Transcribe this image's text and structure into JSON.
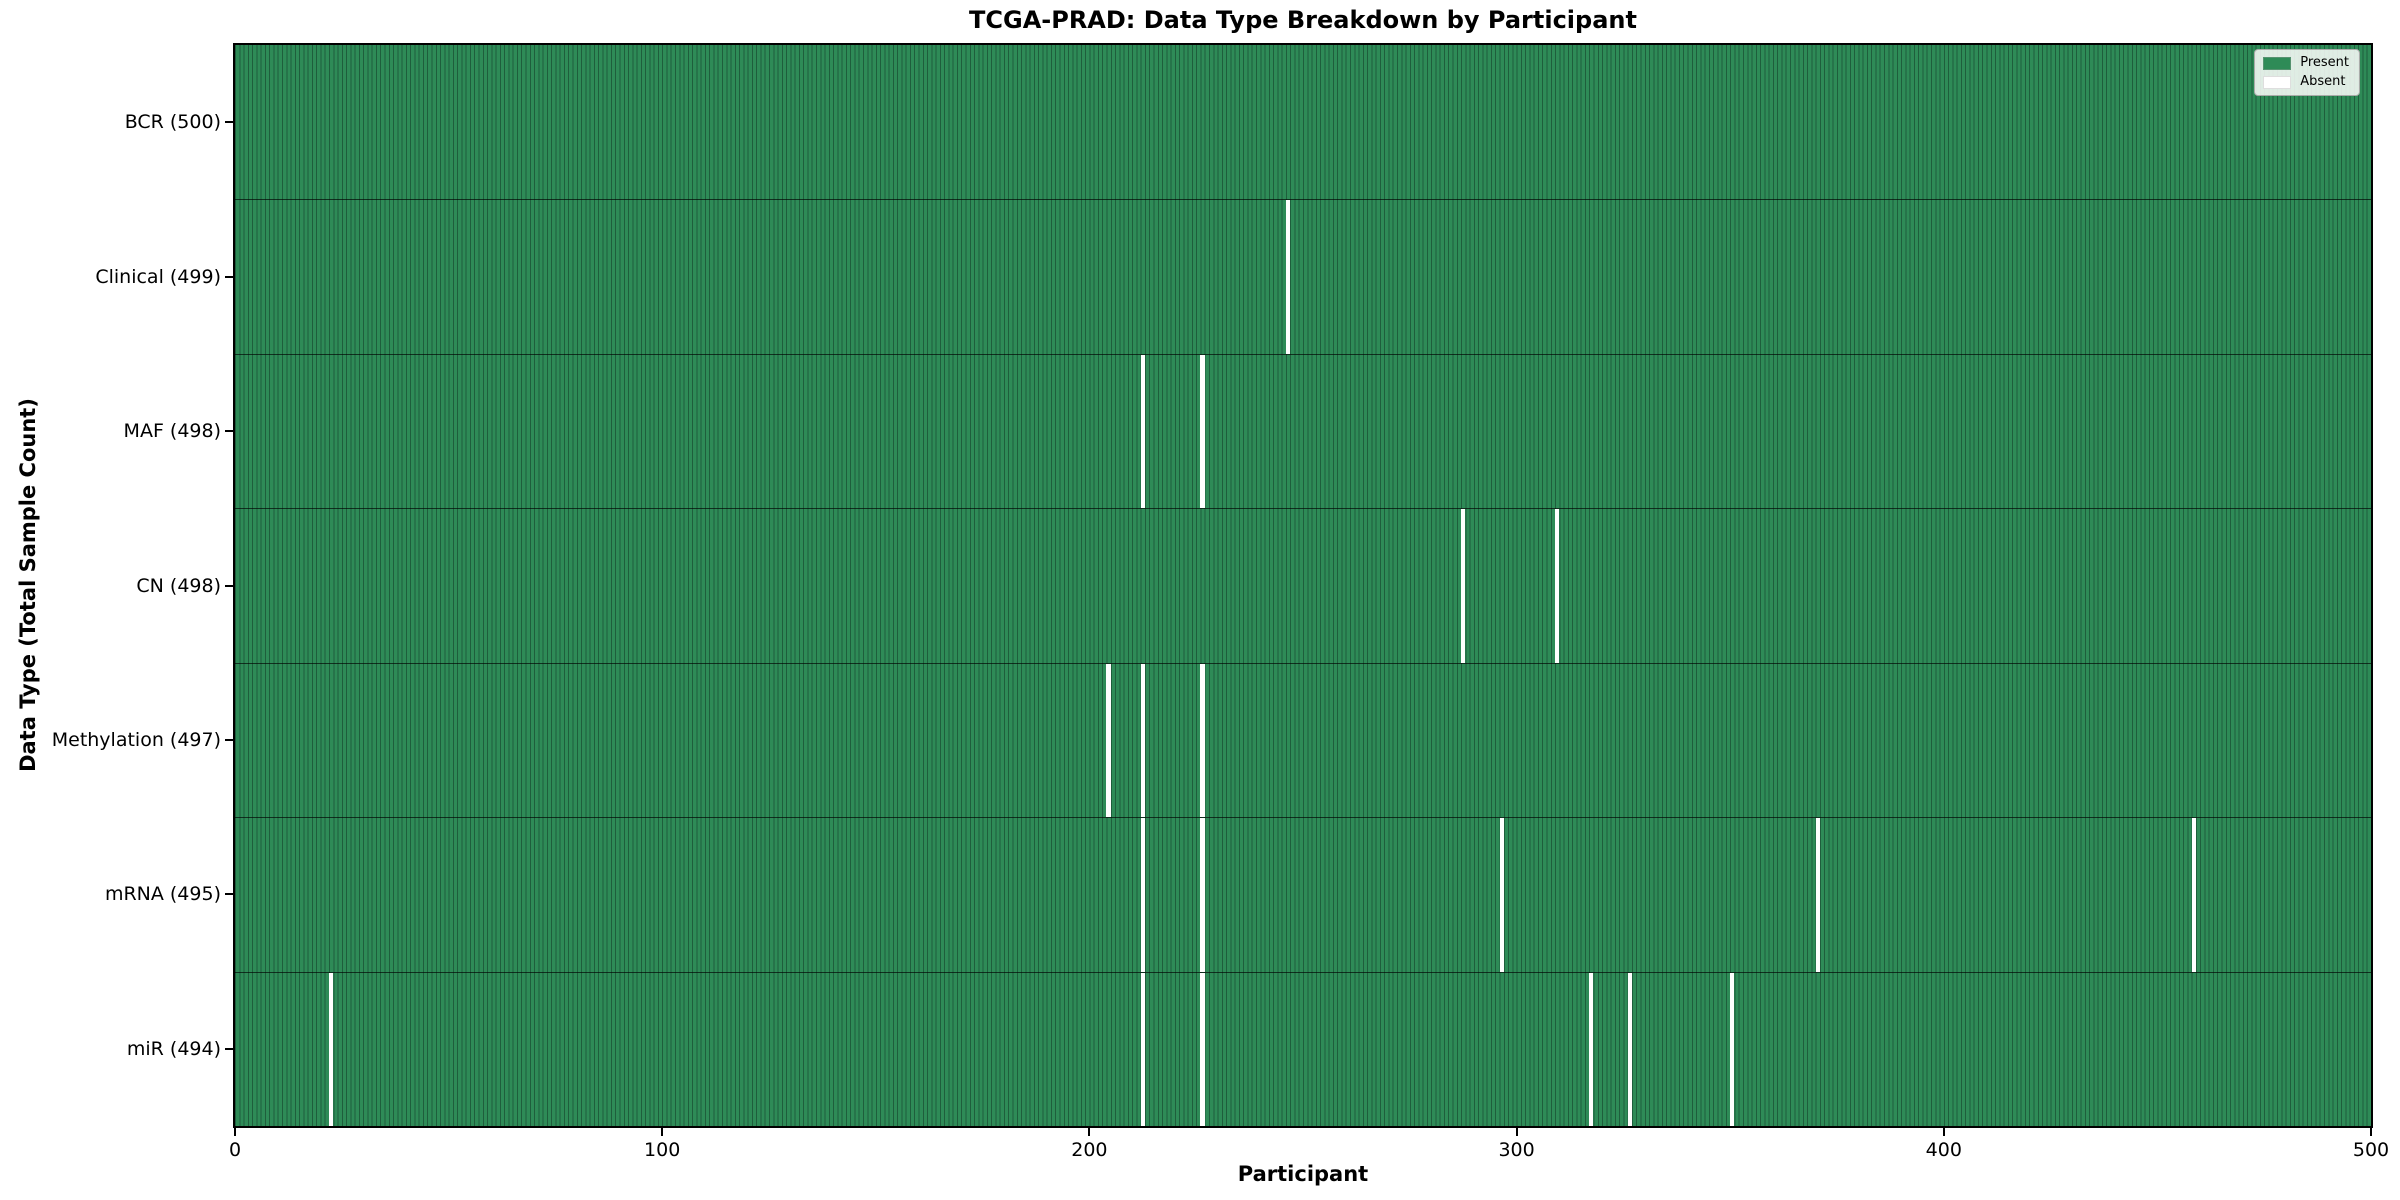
{
  "chart_data": {
    "type": "heatmap",
    "title": "TCGA-PRAD: Data Type Breakdown by Participant",
    "xlabel": "Participant",
    "ylabel": "Data Type (Total Sample Count)",
    "xlim": [
      0,
      500
    ],
    "n_participants": 500,
    "x_ticks": [
      0,
      100,
      200,
      300,
      400,
      500
    ],
    "grid": false,
    "rows": [
      {
        "label": "BCR (500)",
        "data_type": "BCR",
        "present_count": 500,
        "absent_participants": []
      },
      {
        "label": "Clinical (499)",
        "data_type": "Clinical",
        "present_count": 499,
        "absent_participants": [
          246
        ]
      },
      {
        "label": "MAF (498)",
        "data_type": "MAF",
        "present_count": 498,
        "absent_participants": [
          212,
          226
        ]
      },
      {
        "label": "CN (498)",
        "data_type": "CN",
        "present_count": 498,
        "absent_participants": [
          287,
          309
        ]
      },
      {
        "label": "Methylation (497)",
        "data_type": "Methylation",
        "present_count": 497,
        "absent_participants": [
          204,
          212,
          226
        ]
      },
      {
        "label": "mRNA (495)",
        "data_type": "mRNA",
        "present_count": 495,
        "absent_participants": [
          212,
          226,
          296,
          370,
          458
        ]
      },
      {
        "label": "miR (494)",
        "data_type": "miR",
        "present_count": 494,
        "absent_participants": [
          22,
          212,
          226,
          317,
          326,
          350
        ]
      }
    ],
    "legend": {
      "position": "upper right",
      "entries": [
        {
          "label": "Present",
          "color": "#2e8b57"
        },
        {
          "label": "Absent",
          "color": "#ffffff"
        }
      ]
    },
    "colors": {
      "present": "#2e8b57",
      "absent": "#ffffff",
      "bar_edge": "#1e5e3c",
      "row_separator": "rgba(0,0,0,0.65)",
      "plot_border": "#000000",
      "tick": "#000000",
      "text": "#000000"
    }
  }
}
